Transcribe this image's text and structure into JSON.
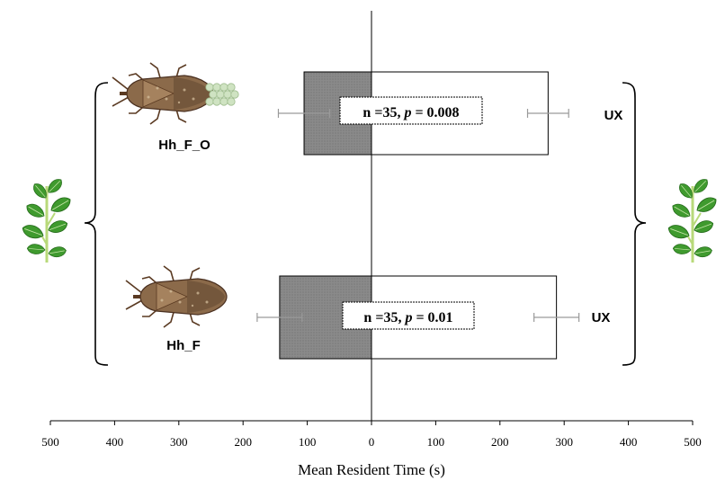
{
  "chart_data": {
    "type": "bar",
    "orientation": "horizontal-diverging",
    "xlabel": "Mean Resident Time (s)",
    "x_ticks": [
      "500",
      "400",
      "300",
      "200",
      "100",
      "0",
      "100",
      "200",
      "300",
      "400",
      "500"
    ],
    "xlim": [
      -500,
      500
    ],
    "rows": [
      {
        "label": "Hh_F_O",
        "left_value": 105,
        "left_error": 40,
        "right_value": 275,
        "right_error": 32,
        "stat_n": "n =35, ",
        "stat_p_label": "p",
        "stat_p_value": " = 0.008",
        "right_label": "UX"
      },
      {
        "label": "Hh_F",
        "left_value": 143,
        "left_error": 35,
        "right_value": 288,
        "right_error": 35,
        "stat_n": "n =35, ",
        "stat_p_label": "p",
        "stat_p_value": " = 0.01",
        "right_label": "UX"
      }
    ],
    "colors": {
      "left_bar": "#808080",
      "right_bar": "#ffffff",
      "error_bar": "#9a9a9a",
      "stroke": "#000000"
    }
  },
  "icons": {
    "bug_with_eggs": "stink-bug-with-egg-mass-icon",
    "bug": "stink-bug-icon",
    "plant_left": "bean-plant-icon",
    "plant_right": "bean-plant-icon"
  }
}
